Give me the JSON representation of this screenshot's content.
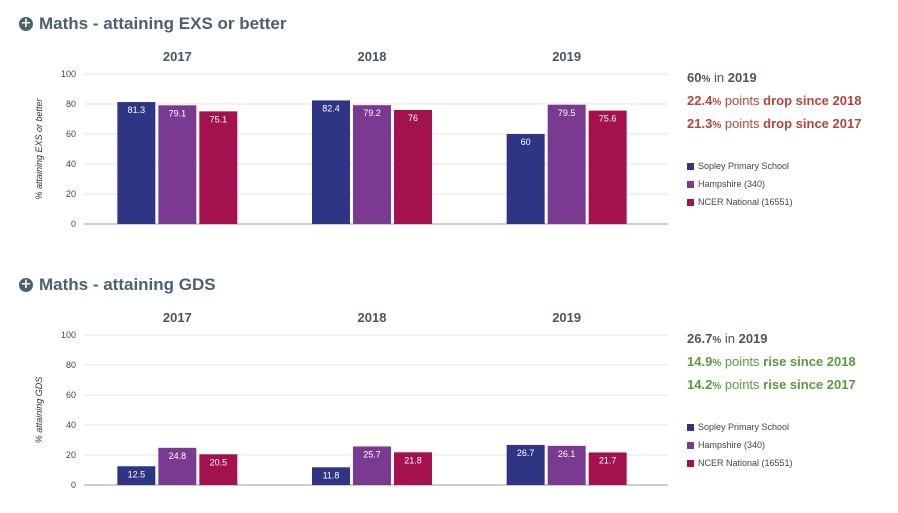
{
  "sections": [
    {
      "title": "Maths - attaining EXS or better",
      "icon": "plus-circle-icon",
      "summary": {
        "value": "60",
        "pct": "%",
        "in_text": "in",
        "year": "2019",
        "change1": "22.4",
        "change1_pct": "%",
        "change1_points": "points",
        "change1_text": "drop since 2018",
        "change2": "21.3",
        "change2_pct": "%",
        "change2_points": "points",
        "change2_text": "drop since 2017",
        "direction": "drop"
      },
      "chart_data": {
        "type": "bar",
        "categories": [
          "2017",
          "2018",
          "2019"
        ],
        "series": [
          {
            "name": "Sopley Primary School",
            "values": [
              81.3,
              82.4,
              60
            ],
            "color": "#2e3585"
          },
          {
            "name": "Hampshire (340)",
            "values": [
              79.1,
              79.2,
              79.5
            ],
            "color": "#7b3a91"
          },
          {
            "name": "NCER National (16551)",
            "values": [
              75.1,
              76,
              75.6
            ],
            "color": "#a3124f"
          }
        ],
        "value_labels": [
          [
            "81.3",
            "82.4",
            "60"
          ],
          [
            "79.1",
            "79.2",
            "79.5"
          ],
          [
            "75.1",
            "76",
            "75.6"
          ]
        ],
        "ylabel": "% attaining EXS or better",
        "ylim": [
          0,
          100
        ],
        "yticks": [
          "0",
          "20",
          "40",
          "60",
          "80",
          "100"
        ],
        "legend_position": "right"
      }
    },
    {
      "title": "Maths - attaining GDS",
      "icon": "plus-circle-icon",
      "summary": {
        "value": "26.7",
        "pct": "%",
        "in_text": "in",
        "year": "2019",
        "change1": "14.9",
        "change1_pct": "%",
        "change1_points": "points",
        "change1_text": "rise since 2018",
        "change2": "14.2",
        "change2_pct": "%",
        "change2_points": "points",
        "change2_text": "rise since 2017",
        "direction": "rise"
      },
      "chart_data": {
        "type": "bar",
        "categories": [
          "2017",
          "2018",
          "2019"
        ],
        "series": [
          {
            "name": "Sopley Primary School",
            "values": [
              12.5,
              11.8,
              26.7
            ],
            "color": "#2e3585"
          },
          {
            "name": "Hampshire (340)",
            "values": [
              24.8,
              25.7,
              26.1
            ],
            "color": "#7b3a91"
          },
          {
            "name": "NCER National (16551)",
            "values": [
              20.5,
              21.8,
              21.7
            ],
            "color": "#a3124f"
          }
        ],
        "value_labels": [
          [
            "12.5",
            "11.8",
            "26.7"
          ],
          [
            "24.8",
            "25.7",
            "26.1"
          ],
          [
            "20.5",
            "21.8",
            "21.7"
          ]
        ],
        "ylabel": "% attaining GDS",
        "ylim": [
          0,
          100
        ],
        "yticks": [
          "0",
          "20",
          "40",
          "60",
          "80",
          "100"
        ],
        "legend_position": "right"
      }
    }
  ]
}
